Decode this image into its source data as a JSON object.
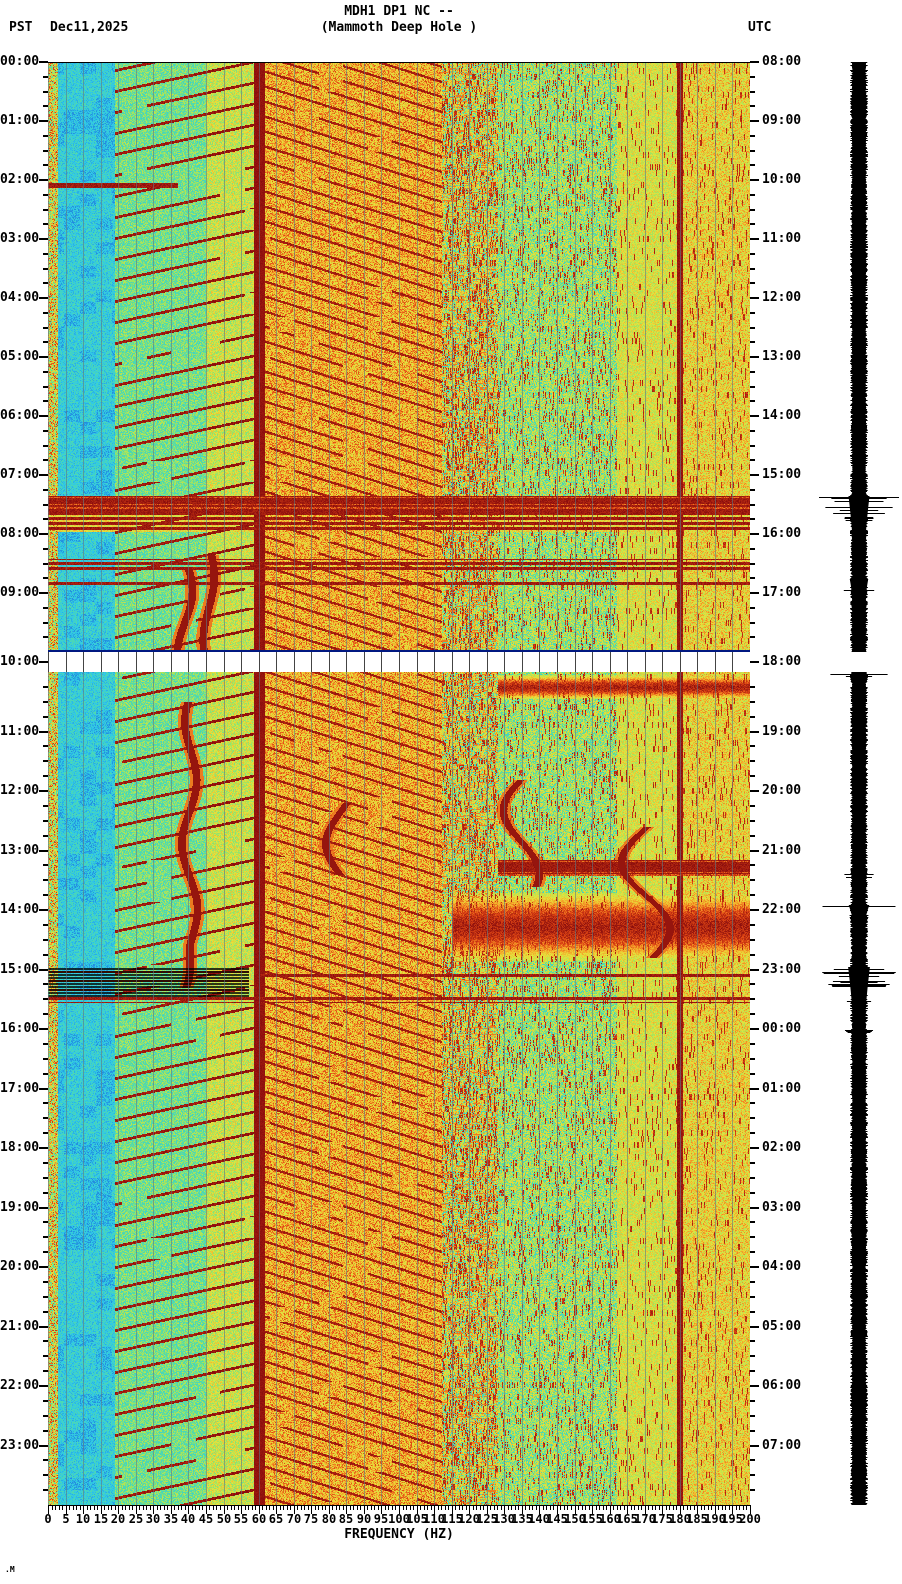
{
  "header": {
    "title_line1": "MDH1 DP1 NC --",
    "title_line2": "(Mammoth Deep Hole )",
    "left_tz": "PST",
    "date": "Dec11,2025",
    "right_tz": "UTC"
  },
  "watermark": ".M",
  "axes": {
    "xlabel": "FREQUENCY (HZ)",
    "freq_labels": [
      "0",
      "5",
      "10",
      "15",
      "20",
      "25",
      "30",
      "35",
      "40",
      "45",
      "50",
      "55",
      "60",
      "65",
      "70",
      "75",
      "80",
      "85",
      "90",
      "95",
      "100",
      "105",
      "110",
      "115",
      "120",
      "125",
      "130",
      "135",
      "140",
      "145",
      "150",
      "155",
      "160",
      "165",
      "170",
      "175",
      "180",
      "185",
      "190",
      "195",
      "200"
    ],
    "left_labels_half1": [
      "00:00",
      "01:00",
      "02:00",
      "03:00",
      "04:00",
      "05:00",
      "06:00",
      "07:00",
      "08:00",
      "09:00"
    ],
    "left_gap_label": "10:00",
    "left_labels_half2": [
      "11:00",
      "12:00",
      "13:00",
      "14:00",
      "15:00",
      "16:00",
      "17:00",
      "18:00",
      "19:00",
      "20:00",
      "21:00",
      "22:00",
      "23:00"
    ],
    "right_labels_half1": [
      "08:00",
      "09:00",
      "10:00",
      "11:00",
      "12:00",
      "13:00",
      "14:00",
      "15:00",
      "16:00",
      "17:00"
    ],
    "right_gap_label": "18:00",
    "right_labels_half2": [
      "19:00",
      "20:00",
      "21:00",
      "22:00",
      "23:00",
      "00:00",
      "01:00",
      "02:00",
      "03:00",
      "04:00",
      "05:00",
      "06:00",
      "07:00"
    ]
  },
  "chart_data": {
    "type": "heatmap",
    "subtype": "seismic-spectrogram",
    "station": "MDH1 DP1 NC --",
    "station_name": "(Mammoth Deep Hole )",
    "date": "Dec11,2025",
    "xlabel": "FREQUENCY (HZ)",
    "freq_range_hz": [
      0,
      200
    ],
    "time_range_pst_hours": [
      0,
      24
    ],
    "utc_offset_hours": 8,
    "gap_at_pst_hour": 10,
    "legend_position": "none",
    "grid": "vertical lines every 5 Hz",
    "palette": [
      [
        0.0,
        "#1a5fd6"
      ],
      [
        0.22,
        "#2fc8e8"
      ],
      [
        0.38,
        "#55dca5"
      ],
      [
        0.52,
        "#aae45a"
      ],
      [
        0.64,
        "#e6e23c"
      ],
      [
        0.76,
        "#f59f28"
      ],
      [
        0.86,
        "#dd4414"
      ],
      [
        1.0,
        "#8a0d0d"
      ]
    ],
    "bands": [
      {
        "f0": 0,
        "f1": 2.8,
        "base": 0.35,
        "rand": 0.55
      },
      {
        "f0": 2.8,
        "f1": 19,
        "base": 0.16,
        "rand": 0.2,
        "patch": true
      },
      {
        "f0": 19,
        "f1": 45,
        "base": 0.3,
        "rand": 0.26,
        "stripe": {
          "slope": 0.75,
          "period": 21,
          "width": 2.8,
          "v": 0.93
        }
      },
      {
        "f0": 45,
        "f1": 58.6,
        "base": 0.45,
        "rand": 0.26,
        "stripe": {
          "slope": 0.75,
          "period": 21,
          "width": 2.8,
          "v": 0.95
        }
      },
      {
        "f0": 58.6,
        "f1": 61.8,
        "base": 0.97,
        "rand": 0.03
      },
      {
        "f0": 61.8,
        "f1": 112,
        "base": 0.6,
        "rand": 0.26,
        "stripe": {
          "slope": -1.1,
          "period": 15,
          "width": 2.4,
          "v": 0.92
        }
      },
      {
        "f0": 112,
        "f1": 128,
        "base": 0.5,
        "rand": 0.3,
        "vdash": 0.3,
        "hdash": 0.12,
        "cyan": 0.2
      },
      {
        "f0": 128,
        "f1": 162,
        "base": 0.42,
        "rand": 0.28,
        "vdash": 0.15,
        "cyan": 0.25
      },
      {
        "f0": 162,
        "f1": 179.2,
        "base": 0.5,
        "rand": 0.22,
        "vdash": 0.07
      },
      {
        "f0": 179.2,
        "f1": 180.8,
        "base": 0.95,
        "rand": 0.05
      },
      {
        "f0": 180.8,
        "f1": 200,
        "base": 0.53,
        "rand": 0.26,
        "vdash": 0.08
      }
    ],
    "events": [
      {
        "type": "line",
        "t0": 2.05,
        "t1": 2.12,
        "f0": 0,
        "f1": 37
      },
      {
        "type": "band",
        "t0": 7.34,
        "t1": 7.62,
        "f0": 0,
        "f1": 200
      },
      {
        "type": "lines",
        "t0": 7.62,
        "t1": 7.95,
        "f0": 0,
        "f1": 200,
        "fill": true
      },
      {
        "type": "lines",
        "t0": 8.42,
        "t1": 8.62,
        "f0": 0,
        "f1": 200
      },
      {
        "type": "line",
        "t0": 8.8,
        "t1": 8.86,
        "f0": 0,
        "f1": 200
      },
      {
        "type": "blob",
        "t0": 10.05,
        "t1": 10.45,
        "f0": 128,
        "f1": 200
      },
      {
        "type": "band",
        "t0": 13.15,
        "t1": 13.42,
        "f0": 128,
        "f1": 200
      },
      {
        "type": "blob",
        "t0": 13.7,
        "t1": 14.85,
        "f0": 115,
        "f1": 200
      },
      {
        "type": "comb",
        "t0": 14.95,
        "t1": 15.45,
        "f0": 0,
        "f1": 57
      },
      {
        "type": "line",
        "t0": 15.06,
        "t1": 15.12,
        "f0": 60,
        "f1": 200
      },
      {
        "type": "lines",
        "t0": 15.42,
        "t1": 15.56,
        "f0": 0,
        "f1": 200
      }
    ],
    "wiggles": [
      {
        "fc": 45,
        "t0": 8.35,
        "t1": 10.0,
        "amp": 1.5
      },
      {
        "fc": 38,
        "t0": 8.55,
        "t1": 10.0,
        "amp": 2.0
      },
      {
        "fc": 41,
        "t0": 10.5,
        "t1": 15.3,
        "amp": 2.0,
        "drift": {
          "t": 14.6,
          "rate": -6
        }
      },
      {
        "fc": 85,
        "t0": 12.2,
        "t1": 13.4,
        "amp": 4.0
      },
      {
        "fc": 137,
        "t0": 11.8,
        "t1": 13.6,
        "amp": 5.0
      },
      {
        "fc": 172,
        "t0": 12.6,
        "t1": 14.8,
        "amp": 6.0
      }
    ],
    "trace_bursts": [
      {
        "t0": 7.35,
        "t1": 8.1,
        "amp": 40
      },
      {
        "t0": 8.75,
        "t1": 9.1,
        "amp": 28
      },
      {
        "t0": 10.02,
        "t1": 10.12,
        "amp": 40
      },
      {
        "t0": 11.5,
        "t1": 11.6,
        "amp": 14
      },
      {
        "t0": 13.3,
        "t1": 13.55,
        "amp": 22
      },
      {
        "t0": 13.9,
        "t1": 14.15,
        "amp": 40
      },
      {
        "t0": 14.95,
        "t1": 15.75,
        "amp": 44
      },
      {
        "t0": 16.0,
        "t1": 16.1,
        "amp": 14
      }
    ]
  }
}
